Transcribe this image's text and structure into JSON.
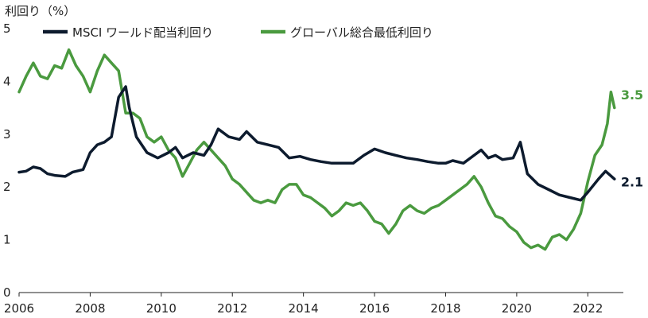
{
  "chart_data": {
    "type": "line",
    "ylabel": "利回り（%）",
    "ylim": [
      0,
      5
    ],
    "xlim": [
      2006,
      2023
    ],
    "yticks": [
      "0",
      "1",
      "2",
      "3",
      "4",
      "5"
    ],
    "xticks": [
      "2006",
      "2008",
      "2010",
      "2012",
      "2014",
      "2016",
      "2018",
      "2020",
      "2022"
    ],
    "grid": false,
    "legend_position": "top",
    "series": [
      {
        "name": "MSCI ワールド配当利回り",
        "color": "#0d1b2e",
        "end_label": "2.1",
        "points": [
          [
            2006.0,
            2.28
          ],
          [
            2006.2,
            2.3
          ],
          [
            2006.4,
            2.38
          ],
          [
            2006.6,
            2.35
          ],
          [
            2006.8,
            2.25
          ],
          [
            2007.0,
            2.22
          ],
          [
            2007.3,
            2.2
          ],
          [
            2007.5,
            2.28
          ],
          [
            2007.8,
            2.33
          ],
          [
            2008.0,
            2.65
          ],
          [
            2008.2,
            2.8
          ],
          [
            2008.4,
            2.85
          ],
          [
            2008.6,
            2.95
          ],
          [
            2008.8,
            3.7
          ],
          [
            2009.0,
            3.9
          ],
          [
            2009.1,
            3.5
          ],
          [
            2009.3,
            2.95
          ],
          [
            2009.6,
            2.65
          ],
          [
            2009.9,
            2.55
          ],
          [
            2010.2,
            2.65
          ],
          [
            2010.4,
            2.75
          ],
          [
            2010.6,
            2.55
          ],
          [
            2010.9,
            2.65
          ],
          [
            2011.2,
            2.6
          ],
          [
            2011.4,
            2.8
          ],
          [
            2011.6,
            3.1
          ],
          [
            2011.9,
            2.95
          ],
          [
            2012.2,
            2.9
          ],
          [
            2012.4,
            3.05
          ],
          [
            2012.7,
            2.85
          ],
          [
            2013.0,
            2.8
          ],
          [
            2013.3,
            2.75
          ],
          [
            2013.6,
            2.55
          ],
          [
            2013.9,
            2.58
          ],
          [
            2014.2,
            2.52
          ],
          [
            2014.5,
            2.48
          ],
          [
            2014.8,
            2.45
          ],
          [
            2015.1,
            2.45
          ],
          [
            2015.4,
            2.45
          ],
          [
            2015.7,
            2.6
          ],
          [
            2016.0,
            2.72
          ],
          [
            2016.3,
            2.65
          ],
          [
            2016.6,
            2.6
          ],
          [
            2016.9,
            2.55
          ],
          [
            2017.2,
            2.52
          ],
          [
            2017.5,
            2.48
          ],
          [
            2017.8,
            2.45
          ],
          [
            2018.0,
            2.45
          ],
          [
            2018.2,
            2.5
          ],
          [
            2018.5,
            2.45
          ],
          [
            2018.8,
            2.6
          ],
          [
            2019.0,
            2.7
          ],
          [
            2019.2,
            2.55
          ],
          [
            2019.4,
            2.6
          ],
          [
            2019.6,
            2.52
          ],
          [
            2019.9,
            2.55
          ],
          [
            2020.1,
            2.85
          ],
          [
            2020.3,
            2.25
          ],
          [
            2020.6,
            2.05
          ],
          [
            2020.9,
            1.95
          ],
          [
            2021.2,
            1.85
          ],
          [
            2021.5,
            1.8
          ],
          [
            2021.8,
            1.75
          ],
          [
            2022.0,
            1.9
          ],
          [
            2022.3,
            2.15
          ],
          [
            2022.5,
            2.3
          ],
          [
            2022.75,
            2.15
          ]
        ]
      },
      {
        "name": "グローバル総合最低利回り",
        "color": "#4a9a3f",
        "end_label": "3.5",
        "points": [
          [
            2006.0,
            3.8
          ],
          [
            2006.2,
            4.1
          ],
          [
            2006.4,
            4.35
          ],
          [
            2006.6,
            4.1
          ],
          [
            2006.8,
            4.05
          ],
          [
            2007.0,
            4.3
          ],
          [
            2007.2,
            4.25
          ],
          [
            2007.4,
            4.6
          ],
          [
            2007.6,
            4.3
          ],
          [
            2007.8,
            4.1
          ],
          [
            2008.0,
            3.8
          ],
          [
            2008.2,
            4.2
          ],
          [
            2008.4,
            4.5
          ],
          [
            2008.6,
            4.35
          ],
          [
            2008.8,
            4.2
          ],
          [
            2009.0,
            3.4
          ],
          [
            2009.2,
            3.4
          ],
          [
            2009.4,
            3.3
          ],
          [
            2009.6,
            2.95
          ],
          [
            2009.8,
            2.85
          ],
          [
            2010.0,
            2.95
          ],
          [
            2010.2,
            2.7
          ],
          [
            2010.4,
            2.55
          ],
          [
            2010.6,
            2.2
          ],
          [
            2010.8,
            2.45
          ],
          [
            2011.0,
            2.7
          ],
          [
            2011.2,
            2.85
          ],
          [
            2011.4,
            2.7
          ],
          [
            2011.6,
            2.55
          ],
          [
            2011.8,
            2.4
          ],
          [
            2012.0,
            2.15
          ],
          [
            2012.2,
            2.05
          ],
          [
            2012.4,
            1.9
          ],
          [
            2012.6,
            1.75
          ],
          [
            2012.8,
            1.7
          ],
          [
            2013.0,
            1.75
          ],
          [
            2013.2,
            1.7
          ],
          [
            2013.4,
            1.95
          ],
          [
            2013.6,
            2.05
          ],
          [
            2013.8,
            2.05
          ],
          [
            2014.0,
            1.85
          ],
          [
            2014.2,
            1.8
          ],
          [
            2014.4,
            1.7
          ],
          [
            2014.6,
            1.6
          ],
          [
            2014.8,
            1.45
          ],
          [
            2015.0,
            1.55
          ],
          [
            2015.2,
            1.7
          ],
          [
            2015.4,
            1.65
          ],
          [
            2015.6,
            1.7
          ],
          [
            2015.8,
            1.55
          ],
          [
            2016.0,
            1.35
          ],
          [
            2016.2,
            1.3
          ],
          [
            2016.4,
            1.12
          ],
          [
            2016.6,
            1.3
          ],
          [
            2016.8,
            1.55
          ],
          [
            2017.0,
            1.65
          ],
          [
            2017.2,
            1.55
          ],
          [
            2017.4,
            1.5
          ],
          [
            2017.6,
            1.6
          ],
          [
            2017.8,
            1.65
          ],
          [
            2018.0,
            1.75
          ],
          [
            2018.2,
            1.85
          ],
          [
            2018.4,
            1.95
          ],
          [
            2018.6,
            2.05
          ],
          [
            2018.8,
            2.2
          ],
          [
            2019.0,
            2.0
          ],
          [
            2019.2,
            1.7
          ],
          [
            2019.4,
            1.45
          ],
          [
            2019.6,
            1.4
          ],
          [
            2019.8,
            1.25
          ],
          [
            2020.0,
            1.15
          ],
          [
            2020.2,
            0.95
          ],
          [
            2020.4,
            0.85
          ],
          [
            2020.6,
            0.9
          ],
          [
            2020.8,
            0.82
          ],
          [
            2021.0,
            1.05
          ],
          [
            2021.2,
            1.1
          ],
          [
            2021.4,
            1.0
          ],
          [
            2021.6,
            1.2
          ],
          [
            2021.8,
            1.5
          ],
          [
            2022.0,
            2.1
          ],
          [
            2022.2,
            2.6
          ],
          [
            2022.4,
            2.8
          ],
          [
            2022.55,
            3.2
          ],
          [
            2022.65,
            3.8
          ],
          [
            2022.75,
            3.5
          ]
        ]
      }
    ]
  }
}
